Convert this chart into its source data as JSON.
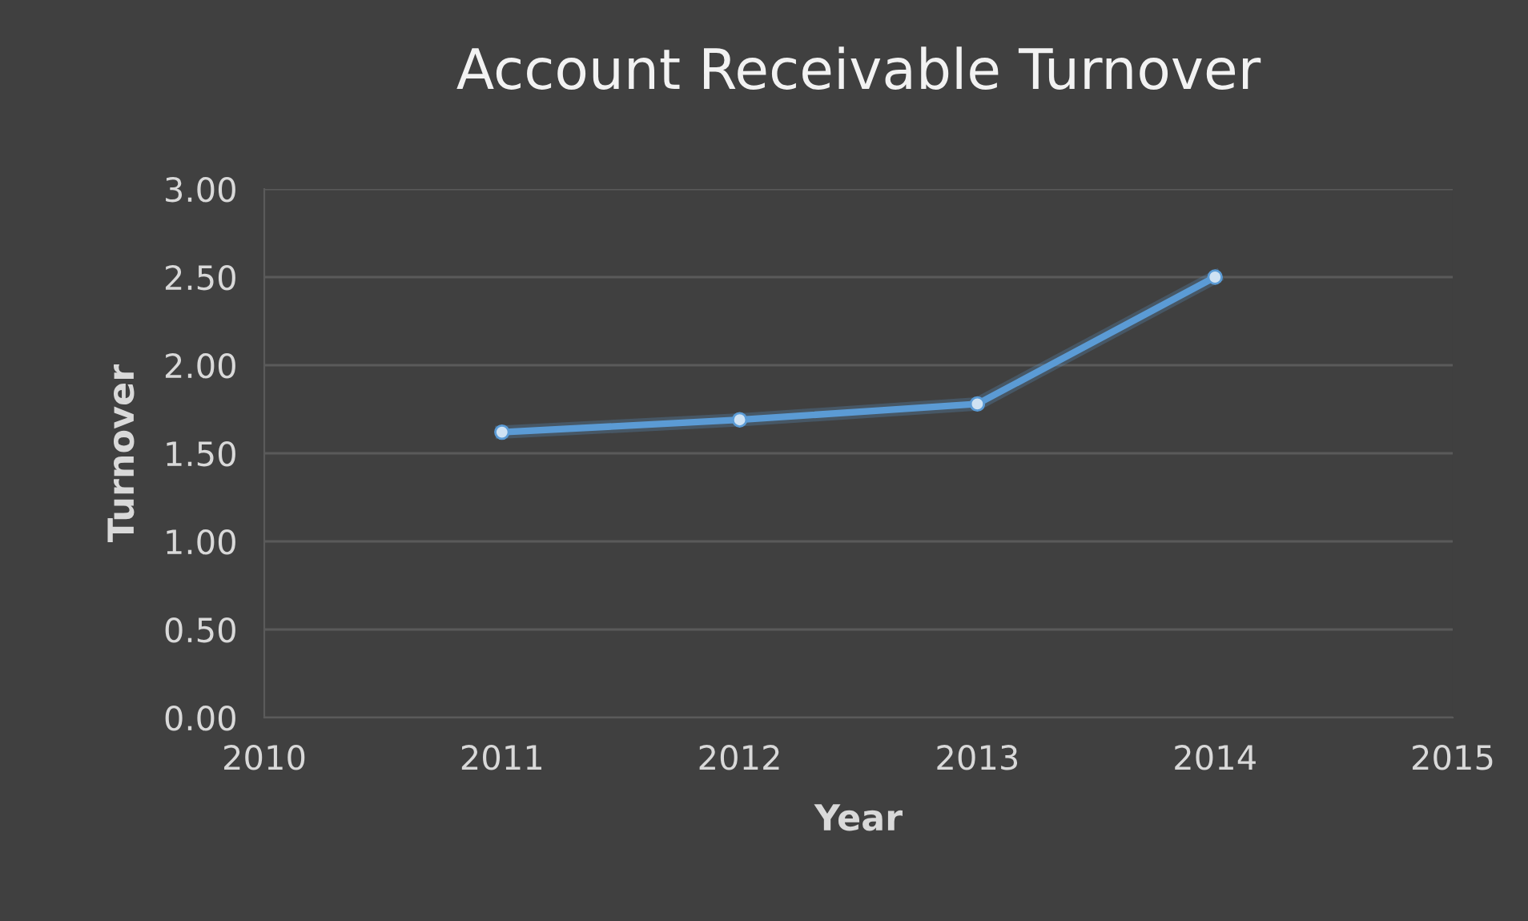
{
  "chart_data": {
    "type": "line",
    "title": "Account Receivable Turnover",
    "xlabel": "Year",
    "ylabel": "Turnover",
    "x": [
      2011,
      2012,
      2013,
      2014
    ],
    "series": [
      {
        "color": "#5b9bd5",
        "values": [
          1.62,
          1.69,
          1.78,
          2.5
        ]
      }
    ],
    "xlim": [
      2010,
      2015
    ],
    "xticks": [
      2010,
      2011,
      2012,
      2013,
      2014,
      2015
    ],
    "ylim": [
      0,
      3
    ],
    "yticks": [
      {
        "value": 0,
        "label": "0.00"
      },
      {
        "value": 0.5,
        "label": "0.50"
      },
      {
        "value": 1,
        "label": "1.00"
      },
      {
        "value": 1.5,
        "label": "1.50"
      },
      {
        "value": 2,
        "label": "2.00"
      },
      {
        "value": 2.5,
        "label": "2.50"
      },
      {
        "value": 3,
        "label": "3.00"
      }
    ],
    "grid": "y",
    "marker": "circle",
    "line_style": "solid"
  }
}
